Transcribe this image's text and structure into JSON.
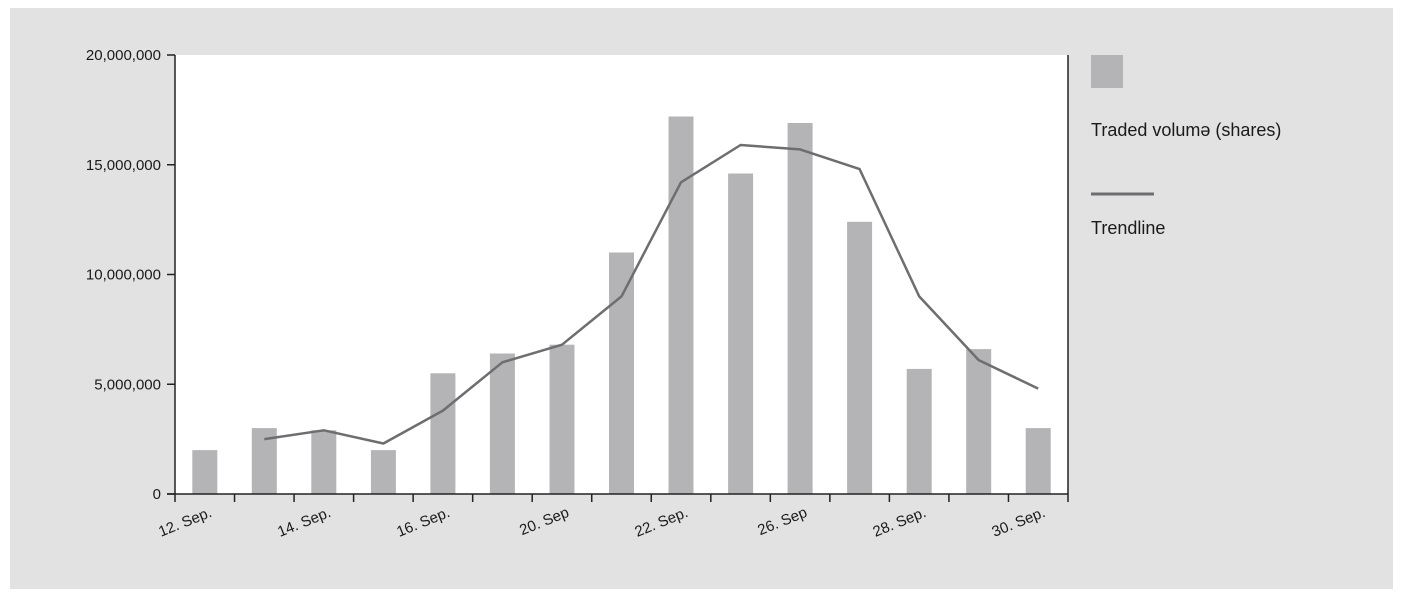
{
  "colors": {
    "background": "#e2e2e3",
    "plot_area": "#ffffff",
    "bars": "#b4b4b6",
    "trendline": "#6e6e70",
    "axis": "#222222"
  },
  "legend": {
    "bars_label": "Traded volumə (shares)",
    "line_label": "Trendline"
  },
  "chart_data": {
    "type": "bar",
    "title": "",
    "xlabel": "",
    "ylabel": "",
    "ylim": [
      0,
      20000000
    ],
    "grid": false,
    "legend_position": "right",
    "y_ticks": [
      0,
      5000000,
      10000000,
      15000000,
      20000000
    ],
    "y_tick_labels": [
      "0",
      "5,000,000",
      "10,000,000",
      "15,000,000",
      "20,000,000"
    ],
    "x_tick_labels": [
      "12. Sep.",
      "14. Sep.",
      "16. Sep.",
      "20. Sep",
      "22. Sep.",
      "26. Sep",
      "28. Sep.",
      "30. Sep."
    ],
    "series": [
      {
        "name": "Traded volumə (shares)",
        "type": "bar",
        "values": [
          2000000,
          3000000,
          2900000,
          2000000,
          5500000,
          6400000,
          6800000,
          11000000,
          17200000,
          14600000,
          16900000,
          12400000,
          5700000,
          6600000,
          3000000
        ]
      },
      {
        "name": "Trendline",
        "type": "line",
        "values": [
          null,
          2500000,
          2900000,
          2300000,
          3800000,
          6000000,
          6800000,
          9000000,
          14200000,
          15900000,
          15700000,
          14800000,
          9000000,
          6100000,
          4800000
        ]
      }
    ]
  }
}
